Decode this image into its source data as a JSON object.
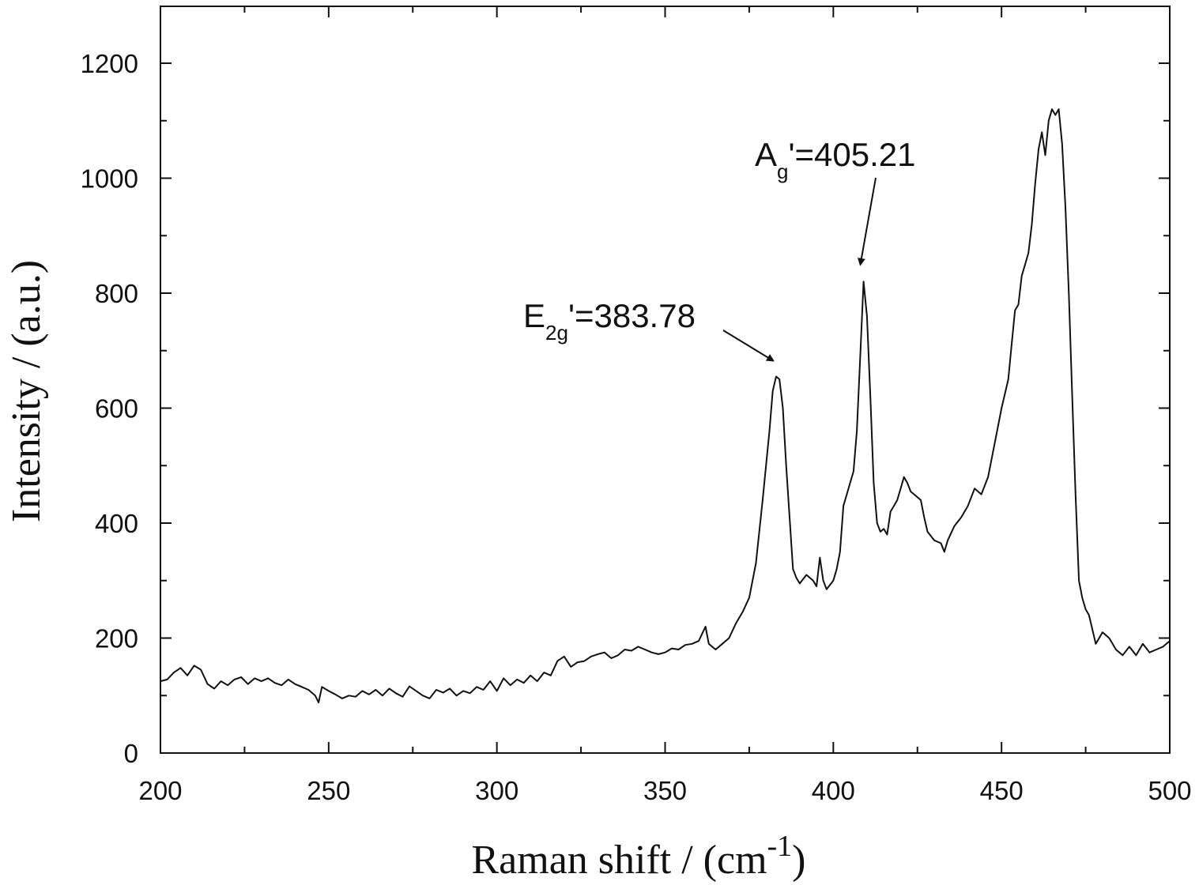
{
  "chart_data": {
    "type": "line",
    "xlabel": "Raman shift / (cm",
    "xlabel_sup": "-1",
    "xlabel_close": ")",
    "ylabel": "Intensity / (a.u.)",
    "xlim": [
      200,
      500
    ],
    "ylim": [
      0,
      1300
    ],
    "xticks": [
      200,
      250,
      300,
      350,
      400,
      450,
      500
    ],
    "yticks": [
      0,
      200,
      400,
      600,
      800,
      1000,
      1200
    ],
    "grid": false,
    "series": [
      {
        "color": "#111111",
        "x": [
          200,
          202,
          204,
          206,
          208,
          210,
          212,
          214,
          216,
          218,
          220,
          222,
          224,
          226,
          228,
          230,
          232,
          234,
          236,
          238,
          240,
          242,
          244,
          246,
          247,
          248,
          250,
          252,
          254,
          256,
          258,
          260,
          262,
          264,
          266,
          268,
          270,
          272,
          274,
          276,
          278,
          280,
          282,
          284,
          286,
          288,
          290,
          292,
          294,
          296,
          298,
          300,
          302,
          304,
          306,
          308,
          310,
          312,
          314,
          316,
          318,
          320,
          322,
          324,
          326,
          328,
          330,
          332,
          334,
          336,
          338,
          340,
          342,
          344,
          346,
          348,
          350,
          352,
          354,
          356,
          358,
          360,
          362,
          363,
          365,
          367,
          369,
          371,
          373,
          375,
          377,
          379,
          381,
          382,
          383,
          384,
          385,
          386,
          387,
          388,
          389,
          390,
          392,
          394,
          395,
          396,
          397,
          398,
          400,
          401,
          402,
          403,
          404,
          405,
          406,
          407,
          408,
          409,
          410,
          411,
          412,
          413,
          414,
          415,
          416,
          417,
          418,
          419,
          420,
          421,
          422,
          423,
          424,
          425,
          426,
          427,
          428,
          430,
          432,
          433,
          434,
          436,
          438,
          440,
          442,
          444,
          446,
          448,
          450,
          452,
          453,
          454,
          455,
          456,
          457,
          458,
          459,
          460,
          461,
          462,
          463,
          464,
          465,
          466,
          467,
          468,
          469,
          470,
          471,
          472,
          473,
          474,
          475,
          476,
          478,
          480,
          482,
          484,
          486,
          488,
          490,
          492,
          494,
          496,
          498,
          500
        ],
        "y": [
          125,
          128,
          140,
          148,
          135,
          152,
          145,
          120,
          112,
          125,
          118,
          128,
          132,
          120,
          130,
          125,
          130,
          122,
          118,
          128,
          120,
          115,
          110,
          100,
          88,
          115,
          108,
          102,
          95,
          100,
          98,
          108,
          102,
          110,
          100,
          112,
          104,
          98,
          116,
          108,
          100,
          95,
          110,
          105,
          112,
          100,
          108,
          104,
          115,
          110,
          125,
          108,
          130,
          118,
          128,
          122,
          135,
          125,
          140,
          135,
          160,
          168,
          150,
          158,
          160,
          168,
          172,
          175,
          165,
          170,
          180,
          178,
          185,
          180,
          175,
          172,
          175,
          182,
          180,
          188,
          190,
          195,
          220,
          190,
          180,
          190,
          200,
          225,
          245,
          270,
          330,
          440,
          560,
          630,
          655,
          650,
          600,
          500,
          410,
          320,
          305,
          295,
          310,
          300,
          290,
          340,
          300,
          285,
          300,
          320,
          350,
          430,
          450,
          470,
          490,
          560,
          690,
          820,
          760,
          620,
          470,
          400,
          385,
          390,
          380,
          420,
          430,
          440,
          460,
          480,
          470,
          455,
          450,
          445,
          440,
          410,
          385,
          370,
          365,
          350,
          370,
          395,
          410,
          430,
          460,
          450,
          480,
          540,
          600,
          650,
          710,
          770,
          780,
          830,
          850,
          870,
          920,
          990,
          1050,
          1080,
          1040,
          1100,
          1120,
          1110,
          1120,
          1060,
          950,
          800,
          620,
          450,
          300,
          270,
          250,
          240,
          190,
          210,
          200,
          180,
          170,
          185,
          170,
          190,
          175,
          180,
          185,
          195
        ]
      }
    ],
    "annotations": [
      {
        "base": "E",
        "sub": "2g",
        "rest": "'=383.78",
        "x": 384,
        "y": 655
      },
      {
        "base": "A",
        "sub": "g",
        "rest": "'=405.21",
        "x": 408.5,
        "y": 825
      }
    ]
  }
}
